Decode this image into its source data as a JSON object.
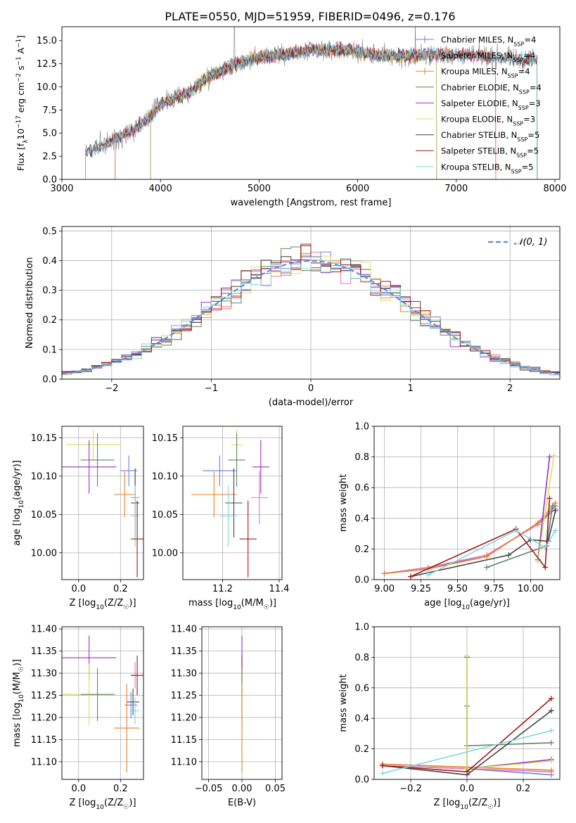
{
  "figure_title": "PLATE=0550, MJD=51959, FIBERID=0496, z=0.176",
  "colors": {
    "Chabrier MILES": "#6b7fe0",
    "Salpeter MILES": "#e377c2",
    "Kroupa MILES": "#e8802a",
    "Chabrier ELODIE": "#5b8a5b",
    "Salpeter ELODIE": "#9b30c0",
    "Kroupa ELODIE": "#d4e35a",
    "Chabrier STELIB": "#444444",
    "Salpeter STELIB": "#a01818",
    "Kroupa STELIB": "#80d8e0"
  },
  "chart_data": [
    {
      "id": "spectrum",
      "type": "line",
      "title": "PLATE=0550, MJD=51959, FIBERID=0496, z=0.176",
      "xlabel": "wavelength [Angstrom, rest frame]",
      "ylabel": "Flux [f_λ 10^-17 erg cm^-2 s^-1 A^-1]",
      "xlim": [
        3000,
        8050
      ],
      "ylim": [
        0,
        16.5
      ],
      "xticks": [
        3000,
        4000,
        5000,
        6000,
        7000,
        8000
      ],
      "yticks": [
        0.0,
        2.5,
        5.0,
        7.5,
        10.0,
        12.5,
        15.0
      ],
      "grid": false,
      "legend_position": "top-right",
      "continuum": {
        "x": [
          3240,
          3400,
          3550,
          3700,
          3900,
          4000,
          4300,
          4500,
          4800,
          5000,
          5300,
          5600,
          5900,
          6200,
          6500,
          6800,
          7100,
          7400,
          7600,
          7800
        ],
        "y": [
          3.0,
          3.6,
          4.4,
          5.2,
          6.8,
          8.2,
          9.4,
          11.2,
          12.6,
          13.2,
          13.6,
          14.0,
          14.0,
          13.4,
          13.3,
          13.5,
          13.4,
          13.2,
          13.0,
          13.0
        ]
      },
      "series": [
        {
          "name": "Chabrier MILES",
          "n_ssp": "4",
          "marker": "+",
          "xrange": [
            3540,
            7400
          ]
        },
        {
          "name": "Salpeter MILES",
          "n_ssp": "4",
          "marker": "+",
          "xrange": [
            3540,
            7400
          ]
        },
        {
          "name": "Kroupa MILES",
          "n_ssp": "4",
          "marker": "+",
          "xrange": [
            3540,
            7400
          ]
        },
        {
          "name": "Chabrier ELODIE",
          "n_ssp": "4",
          "marker": "",
          "xrange": [
            3900,
            6800
          ]
        },
        {
          "name": "Salpeter ELODIE",
          "n_ssp": "3",
          "marker": "",
          "xrange": [
            3900,
            6800
          ]
        },
        {
          "name": "Kroupa ELODIE",
          "n_ssp": "3",
          "marker": "",
          "xrange": [
            3900,
            6800
          ]
        },
        {
          "name": "Chabrier STELIB",
          "n_ssp": "5",
          "marker": "",
          "xrange": [
            3240,
            7820
          ]
        },
        {
          "name": "Salpeter STELIB",
          "n_ssp": "5",
          "marker": "",
          "xrange": [
            3240,
            7820
          ]
        },
        {
          "name": "Kroupa STELIB",
          "n_ssp": "5",
          "marker": "",
          "xrange": [
            3240,
            7820
          ]
        }
      ]
    },
    {
      "id": "residuals",
      "type": "line",
      "xlabel": "(data-model)/error",
      "ylabel": "Normed distribution",
      "xlim": [
        -2.5,
        2.5
      ],
      "ylim": [
        0,
        0.515
      ],
      "xticks": [
        -2,
        -1,
        0,
        1,
        2
      ],
      "yticks": [
        0.0,
        0.1,
        0.2,
        0.3,
        0.4,
        0.5
      ],
      "grid": true,
      "legend_position": "top-right",
      "legend_entries": [
        "𝒩(0, 1)"
      ],
      "normal_curve": {
        "mean": 0,
        "sigma": 1,
        "style": "dashed",
        "color": "#5a8fe0"
      },
      "histogram_bins": {
        "start": -2.5,
        "width": 0.1,
        "count": 50
      }
    },
    {
      "id": "age_vs_z",
      "type": "scatter",
      "xlabel": "Z [log10(Z/Z☉)]",
      "ylabel": "age [log10(age/yr)]",
      "xlim": [
        -0.08,
        0.31
      ],
      "ylim": [
        9.965,
        10.165
      ],
      "xticks": [
        0.0,
        0.2
      ],
      "yticks": [
        10.0,
        10.05,
        10.1,
        10.15
      ],
      "grid": true,
      "points": [
        {
          "series": "Kroupa ELODIE",
          "x": 0.07,
          "y": 10.141,
          "xerr": 0.13,
          "yerr": 0.02
        },
        {
          "series": "Chabrier ELODIE",
          "x": 0.09,
          "y": 10.121,
          "xerr": 0.08,
          "yerr": 0.035
        },
        {
          "series": "Salpeter ELODIE",
          "x": 0.05,
          "y": 10.112,
          "xerr": 0.13,
          "yerr": 0.035
        },
        {
          "series": "Chabrier MILES",
          "x": 0.24,
          "y": 10.107,
          "xerr": 0.04,
          "yerr": 0.02
        },
        {
          "series": "Kroupa MILES",
          "x": 0.22,
          "y": 10.076,
          "xerr": 0.05,
          "yerr": 0.03
        },
        {
          "series": "Salpeter MILES",
          "x": 0.27,
          "y": 10.072,
          "xerr": 0.02,
          "yerr": 0.035
        },
        {
          "series": "Chabrier STELIB",
          "x": 0.27,
          "y": 10.065,
          "xerr": 0.02,
          "yerr": 0.045
        },
        {
          "series": "Kroupa STELIB",
          "x": 0.27,
          "y": 10.048,
          "xerr": 0.02,
          "yerr": 0.04
        },
        {
          "series": "Salpeter STELIB",
          "x": 0.28,
          "y": 10.018,
          "xerr": 0.03,
          "yerr": 0.05
        }
      ]
    },
    {
      "id": "age_vs_mass",
      "type": "scatter",
      "xlabel": "mass [log10(M/M☉)]",
      "ylabel": "",
      "xlim": [
        11.06,
        11.41
      ],
      "ylim": [
        9.965,
        10.165
      ],
      "xticks": [
        11.2,
        11.4
      ],
      "yticks": [
        10.0,
        10.05,
        10.1,
        10.15
      ],
      "grid": true,
      "points": [
        {
          "series": "Kroupa ELODIE",
          "x": 11.25,
          "y": 10.141,
          "xerr": 0.02,
          "yerr": 0.02
        },
        {
          "series": "Chabrier ELODIE",
          "x": 11.25,
          "y": 10.121,
          "xerr": 0.03,
          "yerr": 0.035
        },
        {
          "series": "Salpeter ELODIE",
          "x": 11.335,
          "y": 10.112,
          "xerr": 0.03,
          "yerr": 0.035
        },
        {
          "series": "Chabrier MILES",
          "x": 11.19,
          "y": 10.107,
          "xerr": 0.06,
          "yerr": 0.02
        },
        {
          "series": "Kroupa MILES",
          "x": 11.17,
          "y": 10.076,
          "xerr": 0.08,
          "yerr": 0.03
        },
        {
          "series": "Salpeter MILES",
          "x": 11.33,
          "y": 10.072,
          "xerr": 0.03,
          "yerr": 0.035
        },
        {
          "series": "Chabrier STELIB",
          "x": 11.24,
          "y": 10.065,
          "xerr": 0.03,
          "yerr": 0.045
        },
        {
          "series": "Kroupa STELIB",
          "x": 11.22,
          "y": 10.048,
          "xerr": 0.03,
          "yerr": 0.04
        },
        {
          "series": "Salpeter STELIB",
          "x": 11.29,
          "y": 10.018,
          "xerr": 0.03,
          "yerr": 0.05
        }
      ]
    },
    {
      "id": "weight_vs_age",
      "type": "line",
      "xlabel": "age [log10(age/yr)]",
      "ylabel": "mass weight",
      "xlim": [
        8.93,
        10.2
      ],
      "ylim": [
        0,
        1.0
      ],
      "xticks": [
        9.0,
        9.25,
        9.5,
        9.75,
        10.0
      ],
      "yticks": [
        0.0,
        0.2,
        0.4,
        0.6,
        0.8,
        1.0
      ],
      "grid": true,
      "series": [
        {
          "name": "Chabrier MILES",
          "x": [
            9.0,
            9.3,
            9.7,
            10.05,
            10.17
          ],
          "y": [
            0.04,
            0.07,
            0.16,
            0.36,
            0.48
          ]
        },
        {
          "name": "Salpeter MILES",
          "x": [
            9.0,
            9.3,
            9.7,
            10.05,
            10.17
          ],
          "y": [
            0.04,
            0.08,
            0.16,
            0.36,
            0.46
          ]
        },
        {
          "name": "Kroupa MILES",
          "x": [
            9.0,
            9.3,
            9.7,
            10.05,
            10.17
          ],
          "y": [
            0.04,
            0.07,
            0.15,
            0.37,
            0.5
          ]
        },
        {
          "name": "Chabrier ELODIE",
          "x": [
            9.7,
            10.11,
            10.15
          ],
          "y": [
            0.08,
            0.22,
            0.48
          ]
        },
        {
          "name": "Salpeter ELODIE",
          "x": [
            10.05,
            10.13
          ],
          "y": [
            0.13,
            0.8
          ]
        },
        {
          "name": "Kroupa ELODIE",
          "x": [
            10.05,
            10.16
          ],
          "y": [
            0.12,
            0.81
          ]
        },
        {
          "name": "Chabrier STELIB",
          "x": [
            9.18,
            9.85,
            10.0,
            10.12,
            10.17
          ],
          "y": [
            0.02,
            0.16,
            0.26,
            0.25,
            0.45
          ]
        },
        {
          "name": "Salpeter STELIB",
          "x": [
            9.18,
            9.9,
            10.1,
            10.13
          ],
          "y": [
            0.02,
            0.33,
            0.08,
            0.53
          ]
        },
        {
          "name": "Kroupa STELIB",
          "x": [
            9.3,
            9.9,
            10.1,
            10.17
          ],
          "y": [
            0.03,
            0.32,
            0.21,
            0.32
          ]
        }
      ]
    },
    {
      "id": "mass_vs_z",
      "type": "scatter",
      "xlabel": "Z [log10(Z/Z☉)]",
      "ylabel": "mass [log10(M/M☉)]",
      "xlim": [
        -0.08,
        0.31
      ],
      "ylim": [
        11.06,
        11.405
      ],
      "xticks": [
        0.0,
        0.2
      ],
      "yticks": [
        11.1,
        11.15,
        11.2,
        11.25,
        11.3,
        11.35,
        11.4
      ],
      "grid": true,
      "points": [
        {
          "series": "Salpeter ELODIE",
          "x": 0.05,
          "y": 11.335,
          "xerr": 0.13,
          "yerr": 0.05
        },
        {
          "series": "Kroupa ELODIE",
          "x": 0.05,
          "y": 11.252,
          "xerr": 0.13,
          "yerr": 0.07
        },
        {
          "series": "Chabrier ELODIE",
          "x": 0.09,
          "y": 11.252,
          "xerr": 0.08,
          "yerr": 0.06
        },
        {
          "series": "Salpeter MILES",
          "x": 0.27,
          "y": 11.295,
          "xerr": 0.02,
          "yerr": 0.03
        },
        {
          "series": "Salpeter STELIB",
          "x": 0.28,
          "y": 11.295,
          "xerr": 0.03,
          "yerr": 0.045
        },
        {
          "series": "Chabrier STELIB",
          "x": 0.26,
          "y": 11.235,
          "xerr": 0.03,
          "yerr": 0.03
        },
        {
          "series": "Chabrier MILES",
          "x": 0.25,
          "y": 11.228,
          "xerr": 0.03,
          "yerr": 0.03
        },
        {
          "series": "Kroupa STELIB",
          "x": 0.27,
          "y": 11.215,
          "xerr": 0.02,
          "yerr": 0.03
        },
        {
          "series": "Kroupa MILES",
          "x": 0.23,
          "y": 11.176,
          "xerr": 0.06,
          "yerr": 0.1
        }
      ]
    },
    {
      "id": "mass_vs_ebv",
      "type": "scatter",
      "xlabel": "E(B-V)",
      "ylabel": "",
      "xlim": [
        -0.06,
        0.06
      ],
      "ylim": [
        11.06,
        11.405
      ],
      "xticks": [
        -0.05,
        0.0,
        0.05
      ],
      "yticks": [
        11.1,
        11.15,
        11.2,
        11.25,
        11.3,
        11.35,
        11.4
      ],
      "grid": true,
      "points": [
        {
          "series": "Salpeter ELODIE",
          "x": 0.0,
          "y": 11.335,
          "xerr": 0,
          "yerr": 0.05
        },
        {
          "series": "Salpeter STELIB",
          "x": 0.0,
          "y": 11.295,
          "xerr": 0,
          "yerr": 0.045
        },
        {
          "series": "Chabrier ELODIE",
          "x": 0.0,
          "y": 11.252,
          "xerr": 0,
          "yerr": 0.06
        },
        {
          "series": "Kroupa STELIB",
          "x": 0.0,
          "y": 11.215,
          "xerr": 0,
          "yerr": 0.05
        },
        {
          "series": "Kroupa MILES",
          "x": 0.0,
          "y": 11.176,
          "xerr": 0,
          "yerr": 0.1
        }
      ]
    },
    {
      "id": "weight_vs_z",
      "type": "line",
      "xlabel": "Z [log10(Z/Z☉)]",
      "ylabel": "mass weight",
      "xlim": [
        -0.33,
        0.33
      ],
      "ylim": [
        0,
        1.0
      ],
      "xticks": [
        -0.2,
        0.0,
        0.2
      ],
      "yticks": [
        0.0,
        0.2,
        0.4,
        0.6,
        0.8,
        1.0
      ],
      "grid": true,
      "series": [
        {
          "name": "Chabrier MILES",
          "x": [
            -0.3,
            0.0,
            0.3
          ],
          "y": [
            0.09,
            0.07,
            0.03
          ]
        },
        {
          "name": "Salpeter MILES",
          "x": [
            -0.3,
            0.0,
            0.3
          ],
          "y": [
            0.09,
            0.07,
            0.05
          ]
        },
        {
          "name": "Kroupa MILES",
          "x": [
            -0.3,
            0.0,
            0.3
          ],
          "y": [
            0.1,
            0.08,
            0.06
          ]
        },
        {
          "name": "Chabrier ELODIE",
          "x": [
            0.0,
            0.0,
            0.3
          ],
          "y": [
            0.48,
            0.22,
            0.24
          ]
        },
        {
          "name": "Salpeter ELODIE",
          "x": [
            0.0,
            0.0,
            0.3
          ],
          "y": [
            0.8,
            0.07,
            0.13
          ]
        },
        {
          "name": "Kroupa ELODIE",
          "x": [
            0.0,
            0.0,
            0.3
          ],
          "y": [
            0.81,
            0.07,
            0.12
          ]
        },
        {
          "name": "Chabrier STELIB",
          "x": [
            -0.3,
            0.0,
            0.3
          ],
          "y": [
            0.09,
            0.03,
            0.45
          ]
        },
        {
          "name": "Salpeter STELIB",
          "x": [
            -0.3,
            0.0,
            0.3
          ],
          "y": [
            0.09,
            0.05,
            0.53
          ]
        },
        {
          "name": "Kroupa STELIB",
          "x": [
            -0.3,
            0.3
          ],
          "y": [
            0.04,
            0.32
          ]
        }
      ]
    }
  ]
}
